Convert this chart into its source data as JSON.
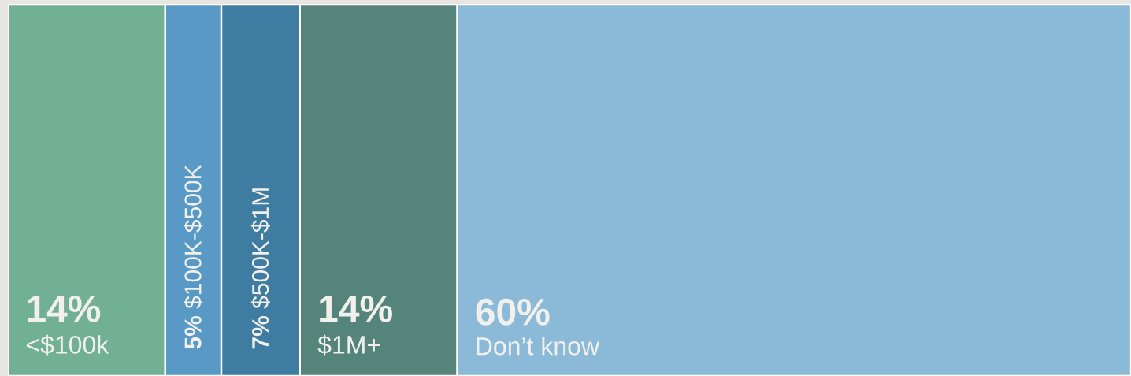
{
  "chart_data": {
    "type": "bar",
    "stacked": true,
    "orientation": "horizontal",
    "tick_labels": false,
    "categories": [
      null
    ],
    "series": [
      {
        "name": "<$100k",
        "color": "#72b095",
        "values": [
          14
        ],
        "value_labels": [
          "14%"
        ]
      },
      {
        "name": "$100K-$500K",
        "color": "#5899c6",
        "values": [
          5
        ],
        "value_labels": [
          "5%"
        ]
      },
      {
        "name": "$500K-$1M",
        "color": "#3f7ca1",
        "values": [
          7
        ],
        "value_labels": [
          "7%"
        ]
      },
      {
        "name": "$1M+",
        "color": "#55847b",
        "values": [
          14
        ],
        "value_labels": [
          "14%"
        ]
      },
      {
        "name": "Don’t know",
        "color": "#8bbad9",
        "values": [
          60
        ],
        "value_labels": [
          "60%"
        ]
      }
    ]
  }
}
